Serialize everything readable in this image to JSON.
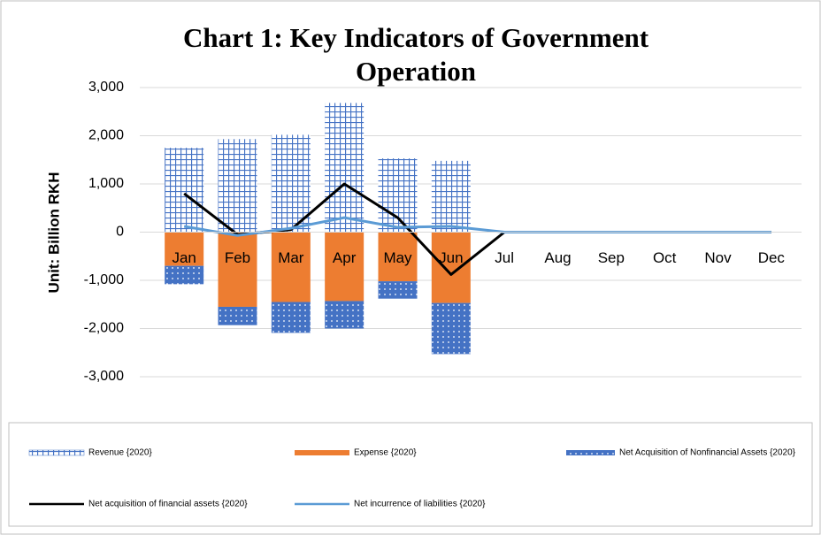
{
  "chart_data": {
    "type": "bar",
    "title": "Chart 1: Key Indicators of Government Operation",
    "y_label": "Unit: Billion RKH",
    "categories": [
      "Jan",
      "Feb",
      "Mar",
      "Apr",
      "May",
      "Jun",
      "Jul",
      "Aug",
      "Sep",
      "Oct",
      "Nov",
      "Dec"
    ],
    "series": [
      {
        "name": "Revenue {2020}",
        "type": "bar",
        "pattern": "grid",
        "color": "#4472c4",
        "values": [
          1750,
          1930,
          2020,
          2680,
          1530,
          1480,
          0,
          0,
          0,
          0,
          0,
          0
        ]
      },
      {
        "name": "Expense {2020}",
        "type": "bar",
        "pattern": "solid",
        "color": "#ed7d31",
        "values": [
          -700,
          -1550,
          -1450,
          -1430,
          -1020,
          -1470,
          0,
          0,
          0,
          0,
          0,
          0
        ]
      },
      {
        "name": "Net Acquisition of Nonfinancial Assets {2020}",
        "type": "bar",
        "pattern": "dots",
        "color": "#4472c4",
        "values": [
          -380,
          -380,
          -640,
          -570,
          -360,
          -1060,
          0,
          0,
          0,
          0,
          0,
          0
        ]
      },
      {
        "name": "Net acquisition of financial assets {2020}",
        "type": "line",
        "color": "#000000",
        "values": [
          800,
          -50,
          50,
          1000,
          300,
          -880,
          0,
          0,
          0,
          0,
          0,
          0
        ]
      },
      {
        "name": "Net incurrence of liabilities {2020}",
        "type": "line",
        "color": "#5b9bd5",
        "values": [
          120,
          -70,
          80,
          300,
          100,
          120,
          0,
          0,
          0,
          0,
          0,
          0
        ]
      }
    ],
    "ylim": [
      -3000,
      3000
    ],
    "yticks": [
      {
        "value": 3000,
        "label": "3,000"
      },
      {
        "value": 2000,
        "label": "2,000"
      },
      {
        "value": 1000,
        "label": "1,000"
      },
      0,
      {
        "value": -1000,
        "label": "-1,000"
      },
      {
        "value": -2000,
        "label": "-2,000"
      },
      {
        "value": -3000,
        "label": "-3,000"
      }
    ],
    "grid": true,
    "legend": "bottom"
  }
}
